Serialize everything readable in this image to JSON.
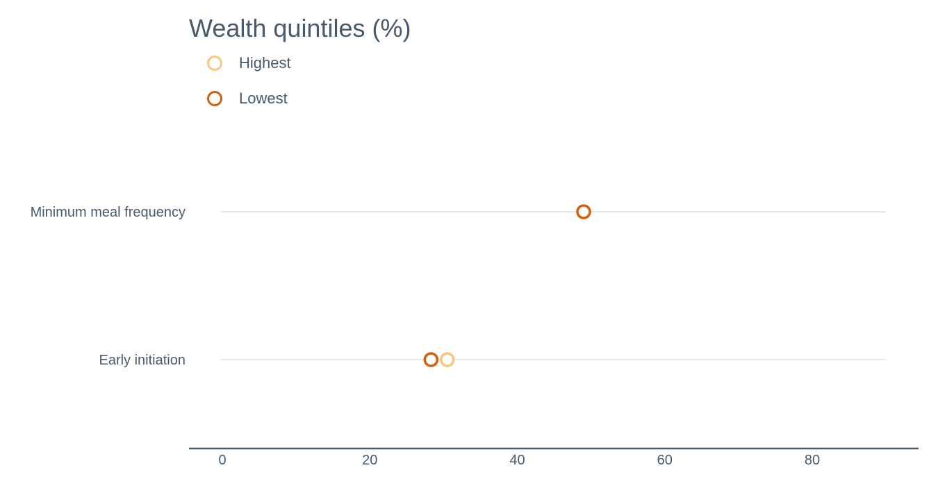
{
  "chart_data": {
    "type": "scatter",
    "title": "Wealth quintiles (%)",
    "categories": [
      "Minimum meal frequency",
      "Early initiation"
    ],
    "series": [
      {
        "name": "Highest",
        "color": "#fbc57f",
        "values": [
          null,
          30.5
        ]
      },
      {
        "name": "Lowest",
        "color": "#d45f10",
        "values": [
          49,
          28.3
        ]
      }
    ],
    "xticks": [
      0,
      20,
      40,
      60,
      80
    ],
    "xlim": [
      -4.5,
      94
    ],
    "grid": true,
    "legend_position": "top-left"
  }
}
